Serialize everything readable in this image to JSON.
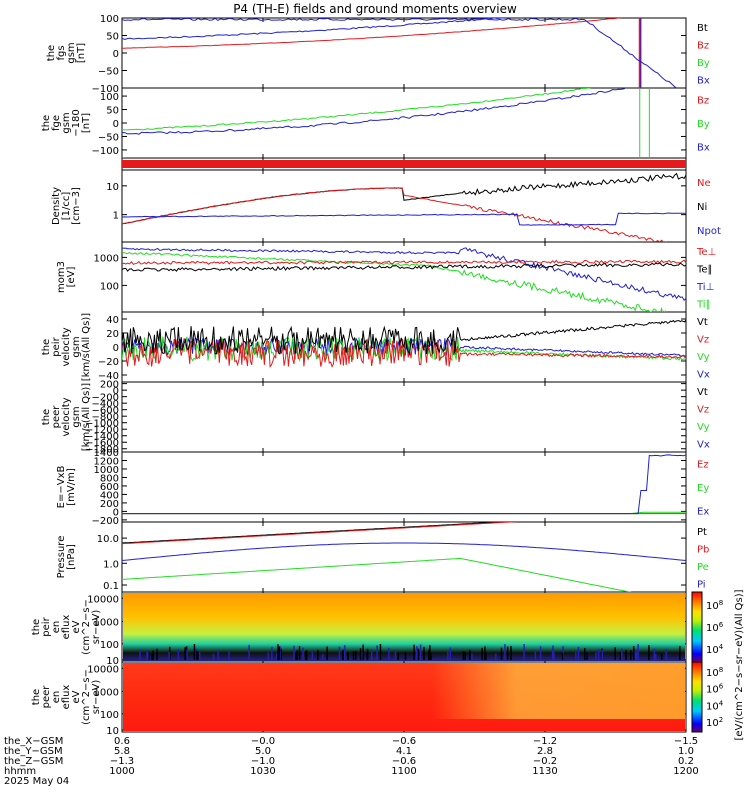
{
  "title": "P4 (TH-E) fields and ground moments overview",
  "colors": {
    "black": "#000000",
    "red": "#e41a1c",
    "green": "#22dd22",
    "blue": "#1f1fd6"
  },
  "chart_data": [
    {
      "type": "line",
      "ylabel_lines": [
        "the",
        "fgs",
        "gsm",
        "[nT]"
      ],
      "ticks": [
        "100",
        "50",
        "0",
        "−50",
        "−100"
      ],
      "ylim": [
        -100,
        100
      ],
      "legend": [
        "Bt",
        "Bz",
        "By",
        "Bx"
      ],
      "legend_colors": [
        "black",
        "red",
        "green",
        "blue"
      ]
    },
    {
      "type": "line",
      "ylabel_lines": [
        "the",
        "fge",
        "gsm",
        "−180",
        "[nT]"
      ],
      "ticks": [
        "100",
        "50",
        "0",
        "−50",
        "−100"
      ],
      "ylim": [
        -130,
        130
      ],
      "legend": [
        "Bz",
        "By",
        "Bx"
      ],
      "legend_colors": [
        "red",
        "green",
        "blue"
      ]
    },
    {
      "type": "bar",
      "note": "red band (state flag)"
    },
    {
      "type": "line",
      "ylabel_lines": [
        "Density",
        "[1/cc]",
        "[cm−3]"
      ],
      "ticks": [
        "10",
        "1"
      ],
      "log": true,
      "legend": [
        "Ne",
        "Ni",
        "Npot"
      ],
      "legend_colors": [
        "red",
        "black",
        "blue"
      ]
    },
    {
      "type": "line",
      "ylabel_lines": [
        "mom3",
        "[eV]"
      ],
      "ticks": [
        "1000",
        "100"
      ],
      "log": true,
      "legend": [
        "Te⊥",
        "Te∥",
        "Ti⊥",
        "Ti∥"
      ],
      "legend_colors": [
        "red",
        "black",
        "blue",
        "green"
      ]
    },
    {
      "type": "line",
      "ylabel_lines": [
        "the",
        "peir",
        "velocity",
        "gsm",
        "[km/s(All Qs)]"
      ],
      "ticks": [
        "40",
        "20",
        "0",
        "−20",
        "−40"
      ],
      "ylim": [
        -50,
        50
      ],
      "legend": [
        "Vt",
        "Vz",
        "Vy",
        "Vx"
      ],
      "legend_colors": [
        "black",
        "red",
        "green",
        "blue"
      ]
    },
    {
      "type": "line",
      "ylabel_lines": [
        "the",
        "peer",
        "velocity",
        "gsm",
        "[km/s(All Qs)]"
      ],
      "ticks": [
        "200",
        "0",
        "−200",
        "−400",
        "−600",
        "−800",
        "−1000",
        "−1200",
        "−1400",
        "−1600",
        "−1800"
      ],
      "ylim": [
        -1900,
        250
      ],
      "legend": [
        "Vt",
        "Vz",
        "Vy",
        "Vx"
      ],
      "legend_colors": [
        "black",
        "red",
        "green",
        "blue"
      ]
    },
    {
      "type": "line",
      "ylabel_lines": [
        "E=−VxB",
        "[mV/m]"
      ],
      "ticks": [
        "1400",
        "1200",
        "1000",
        "800",
        "600",
        "400",
        "200",
        "0",
        "−200"
      ],
      "ylim": [
        -250,
        1400
      ],
      "legend": [
        "Ez",
        "Ey",
        "Ex"
      ],
      "legend_colors": [
        "red",
        "green",
        "blue"
      ]
    },
    {
      "type": "line",
      "ylabel_lines": [
        "Pressure",
        "[nPa]"
      ],
      "ticks": [
        "10.0",
        "1.0",
        "0.1"
      ],
      "log": true,
      "legend": [
        "Pt",
        "Pb",
        "Pe",
        "Pi"
      ],
      "legend_colors": [
        "black",
        "red",
        "green",
        "blue"
      ]
    },
    {
      "type": "heatmap",
      "ylabel_lines": [
        "the",
        "peir",
        "en",
        "eflux",
        "eV",
        "(cm^2−s−",
        "sr−eV)"
      ],
      "ticks": [
        "10000",
        "1000",
        "100",
        "10"
      ]
    },
    {
      "type": "heatmap",
      "ylabel_lines": [
        "the",
        "peer",
        "en",
        "eflux",
        "eV",
        "(cm^2−s−",
        "sr−eV)"
      ],
      "ticks": [
        "10000",
        "1000",
        "100",
        "10"
      ]
    }
  ],
  "colorbar": {
    "upper_ticks": [
      "10^8",
      "10^6",
      "10^4"
    ],
    "lower_ticks": [
      "10^8",
      "10^6",
      "10^4",
      "10^2"
    ],
    "label": "[eV/(cm^2−s−sr−eV)(All Qs)]"
  },
  "xaxis": {
    "rows": [
      {
        "label": "the_X−GSM",
        "values": [
          "0.6",
          "−0.0",
          "−0.6",
          "−1.2",
          "−1.5"
        ]
      },
      {
        "label": "the_Y−GSM",
        "values": [
          "5.8",
          "5.0",
          "4.1",
          "2.8",
          "1.0"
        ]
      },
      {
        "label": "the_Z−GSM",
        "values": [
          "−1.3",
          "−1.0",
          "−0.6",
          "−0.2",
          "0.2"
        ]
      },
      {
        "label": "hhmm",
        "values": [
          "1000",
          "1030",
          "1100",
          "1130",
          "1200"
        ]
      }
    ],
    "date": "2025 May 04"
  }
}
